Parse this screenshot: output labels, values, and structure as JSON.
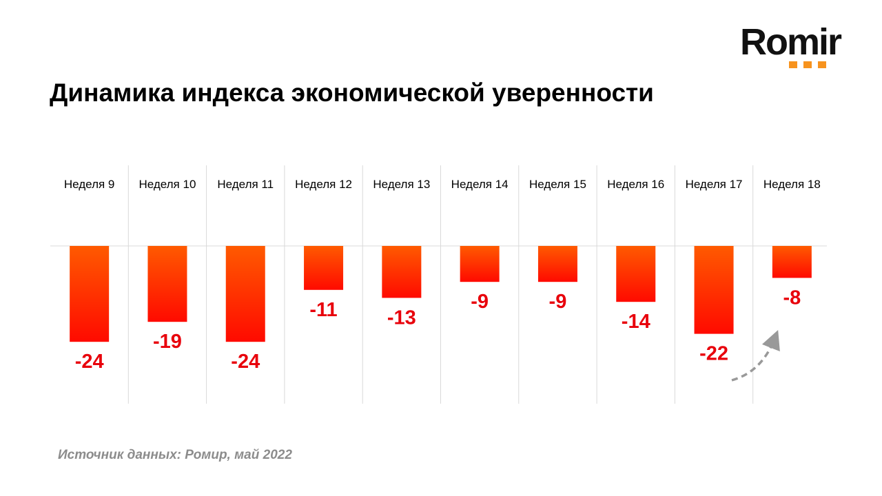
{
  "logo": {
    "text": "Romir"
  },
  "title": "Динамика индекса экономической уверенности",
  "source": "Источник данных: Ромир, май 2022",
  "chart_data": {
    "type": "bar",
    "title": "Динамика индекса экономической уверенности",
    "categories": [
      "Неделя 9",
      "Неделя 10",
      "Неделя 11",
      "Неделя 12",
      "Неделя 13",
      "Неделя 14",
      "Неделя 15",
      "Неделя 16",
      "Неделя 17",
      "Неделя 18"
    ],
    "values": [
      -24,
      -19,
      -24,
      -11,
      -13,
      -9,
      -9,
      -14,
      -22,
      -8
    ],
    "xlabel": "",
    "ylabel": "",
    "ylim": [
      -40,
      0
    ],
    "colors": {
      "bar_top": "#ff5a00",
      "bar_bottom": "#ff0a00",
      "label": "#e8000b"
    },
    "annotation": "dashed arrow from week 17 to week 18 (upward)"
  }
}
